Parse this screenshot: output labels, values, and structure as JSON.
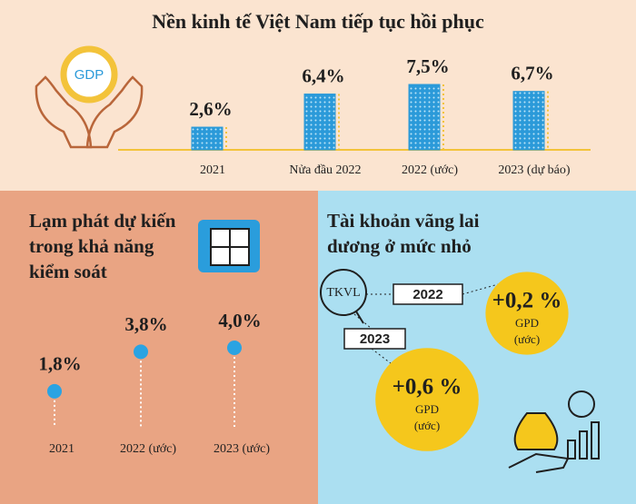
{
  "chart_data": [
    {
      "type": "bar",
      "title": "Nền kinh tế Việt Nam tiếp tục hồi phục",
      "icon_label": "GDP",
      "categories": [
        "2021",
        "Nửa đầu 2022",
        "2022 (ước)",
        "2023 (dự báo)"
      ],
      "values": [
        2.6,
        6.4,
        7.5,
        6.7
      ],
      "value_labels": [
        "2,6%",
        "6,4%",
        "7,5%",
        "6,7%"
      ],
      "color": "#2b9ad9"
    },
    {
      "type": "lollipop",
      "title": [
        "Lạm phát dự kiến",
        "trong khả năng",
        "kiểm soát"
      ],
      "categories": [
        "2021",
        "2022 (ước)",
        "2023 (ước)"
      ],
      "values": [
        1.8,
        3.8,
        4.0
      ],
      "value_labels": [
        "1,8%",
        "3,8%",
        "4,0%"
      ],
      "color": "#2aa3e2"
    },
    {
      "type": "bubble",
      "title": [
        "Tài khoản vãng lai",
        "dương ở mức nhỏ"
      ],
      "label": "TKVL",
      "categories": [
        "2022",
        "2023"
      ],
      "values": [
        0.2,
        0.6
      ],
      "value_labels": [
        "+0,2 %",
        "+0,6 %"
      ],
      "unit": "GPD",
      "note": "(ước)",
      "color": "#f5c71c"
    }
  ]
}
